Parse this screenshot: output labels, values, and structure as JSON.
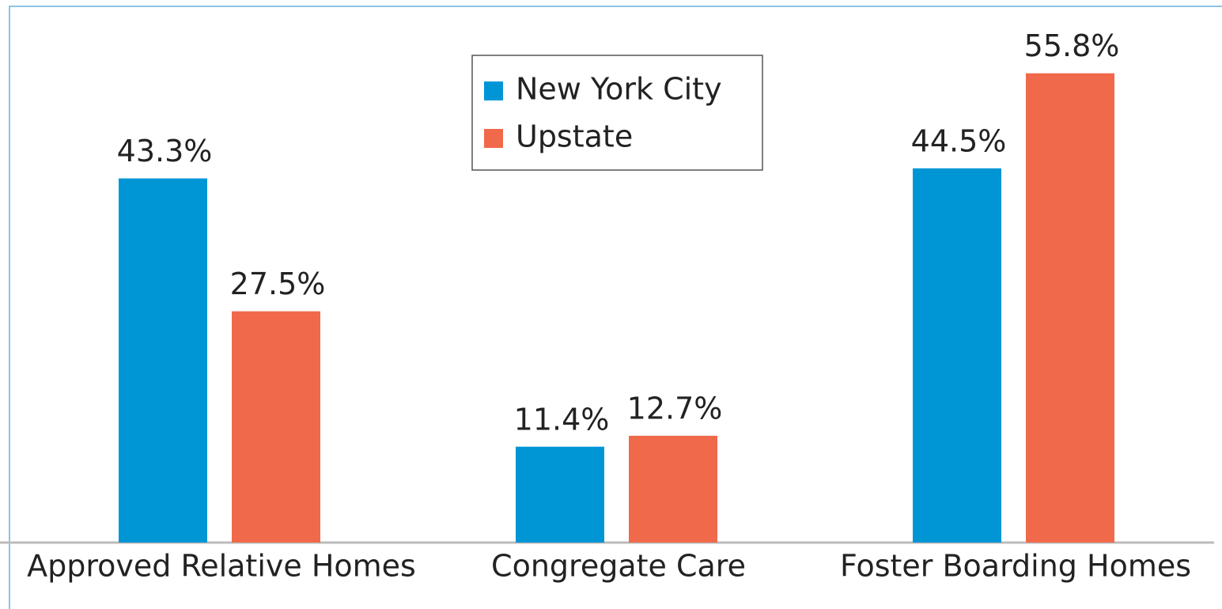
{
  "chart_data": {
    "type": "bar",
    "categories": [
      "Approved Relative Homes",
      "Congregate Care",
      "Foster Boarding Homes"
    ],
    "series": [
      {
        "name": "New York City",
        "color": "#0096d6",
        "values": [
          43.3,
          11.4,
          44.5
        ],
        "value_labels": [
          "43.3%",
          "11.4%",
          "44.5%"
        ]
      },
      {
        "name": "Upstate",
        "color": "#f0694a",
        "values": [
          27.5,
          12.7,
          55.8
        ],
        "value_labels": [
          "27.5%",
          "12.7%",
          "55.8%"
        ]
      }
    ],
    "ylim": [
      0,
      60
    ]
  }
}
